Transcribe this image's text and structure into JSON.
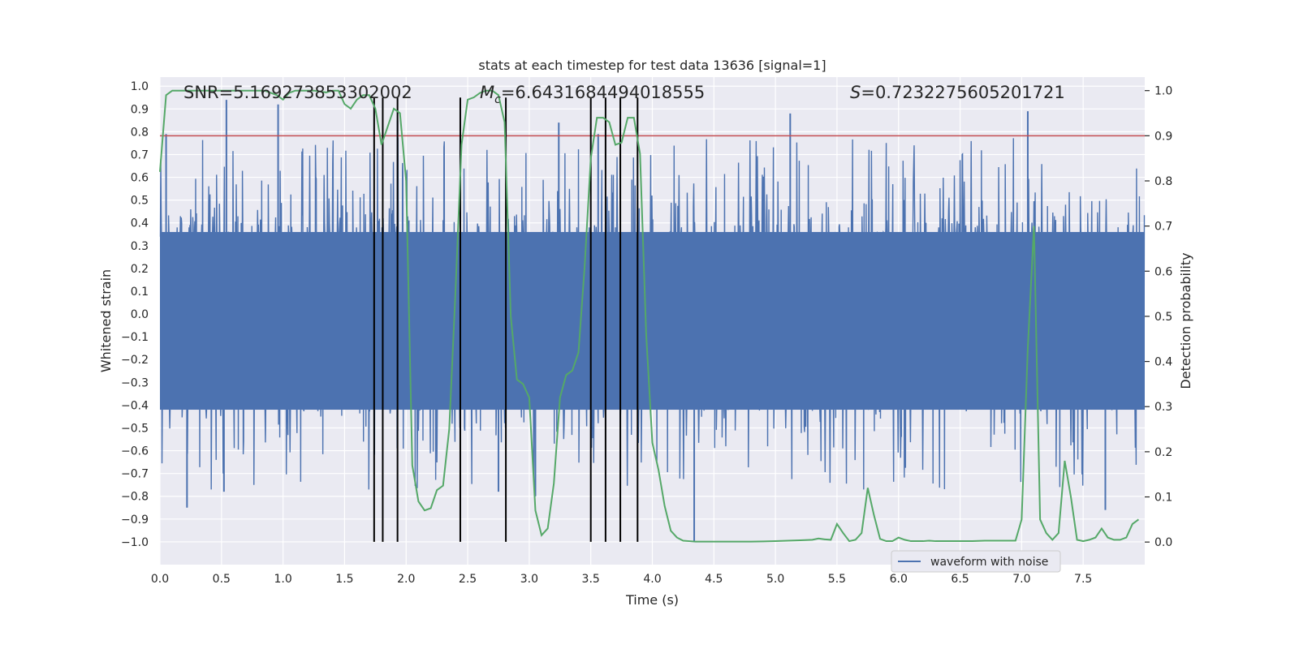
{
  "chart_data": {
    "type": "line",
    "title": "stats at each timestep for test data 13636 [signal=1]",
    "xlabel": "Time (s)",
    "ylabel": "Whitened strain",
    "ylabel_right": "Detection probability",
    "xlim": [
      0.0,
      8.0
    ],
    "ylim": [
      -1.1,
      1.04
    ],
    "ylim_right": [
      -0.05,
      1.03
    ],
    "x_ticks": [
      0.0,
      0.5,
      1.0,
      1.5,
      2.0,
      2.5,
      3.0,
      3.5,
      4.0,
      4.5,
      5.0,
      5.5,
      6.0,
      6.5,
      7.0,
      7.5
    ],
    "x_tick_labels": [
      "0.0",
      "0.5",
      "1.0",
      "1.5",
      "2.0",
      "2.5",
      "3.0",
      "3.5",
      "4.0",
      "4.5",
      "5.0",
      "5.5",
      "6.0",
      "6.5",
      "7.0",
      "7.5"
    ],
    "y_ticks": [
      1.0,
      0.9,
      0.8,
      0.7,
      0.6,
      0.5,
      0.4,
      0.3,
      0.2,
      0.1,
      0.0,
      -0.1,
      -0.2,
      -0.3,
      -0.4,
      -0.5,
      -0.6,
      -0.7,
      -0.8,
      -0.9,
      -1.0
    ],
    "y_tick_labels": [
      "1.0",
      "0.9",
      "0.8",
      "0.7",
      "0.6",
      "0.5",
      "0.4",
      "0.3",
      "0.2",
      "0.1",
      "0.0",
      "-0.1",
      "-0.2",
      "-0.3",
      "-0.4",
      "-0.5",
      "-0.6",
      "-0.7",
      "-0.8",
      "-0.9",
      "-1.0"
    ],
    "y_right_ticks": [
      1.0,
      0.9,
      0.8,
      0.7,
      0.6,
      0.5,
      0.4,
      0.3,
      0.2,
      0.1,
      0.0
    ],
    "y_right_tick_labels": [
      "1.0",
      "0.9",
      "0.8",
      "0.7",
      "0.6",
      "0.5",
      "0.4",
      "0.3",
      "0.2",
      "0.1",
      "0.0"
    ],
    "annotations": {
      "snr": "SNR=5.169273853302002",
      "mc": "M_c=6.6431684494018555",
      "mc_symbol": "M",
      "mc_sub": "c",
      "mc_value": "=6.6431684494018555",
      "s_symbol": "S",
      "s_value": "=0.7232275605201721"
    },
    "threshold": {
      "value": 0.9,
      "axis": "right",
      "color": "#c44e52"
    },
    "event_markers": {
      "x": [
        1.74,
        1.81,
        1.93,
        2.44,
        2.81,
        3.5,
        3.62,
        3.74,
        3.88
      ],
      "ymin": -1.0,
      "ymax": 0.95,
      "color": "#000000"
    },
    "waveform": {
      "name": "waveform with noise",
      "color": "#4c72b0",
      "duration": 8.0,
      "samples": 2400,
      "core_band": [
        -0.42,
        0.36
      ],
      "spikes": [
        {
          "x": 0.54,
          "y": 0.94
        },
        {
          "x": 0.96,
          "y": 0.92
        },
        {
          "x": 0.22,
          "y": -0.85
        },
        {
          "x": 0.05,
          "y": 0.79
        },
        {
          "x": 1.93,
          "y": 0.85
        },
        {
          "x": 2.44,
          "y": 0.79
        },
        {
          "x": 3.24,
          "y": 0.84
        },
        {
          "x": 3.56,
          "y": 0.79
        },
        {
          "x": 4.34,
          "y": -1.0
        },
        {
          "x": 5.12,
          "y": 0.88
        },
        {
          "x": 7.05,
          "y": 0.89
        },
        {
          "x": 7.68,
          "y": -0.86
        },
        {
          "x": 3.05,
          "y": -0.8
        },
        {
          "x": 2.75,
          "y": -0.78
        },
        {
          "x": 0.52,
          "y": -0.78
        }
      ]
    },
    "probability": {
      "color": "#55a868",
      "x": [
        0.0,
        0.05,
        0.1,
        0.15,
        0.2,
        0.25,
        0.3,
        0.35,
        0.4,
        0.45,
        0.5,
        0.55,
        0.6,
        0.65,
        0.7,
        0.75,
        0.8,
        0.85,
        0.9,
        0.95,
        1.0,
        1.05,
        1.1,
        1.15,
        1.2,
        1.25,
        1.3,
        1.35,
        1.4,
        1.45,
        1.5,
        1.55,
        1.6,
        1.65,
        1.7,
        1.75,
        1.8,
        1.85,
        1.9,
        1.95,
        2.0,
        2.05,
        2.1,
        2.15,
        2.2,
        2.25,
        2.3,
        2.35,
        2.4,
        2.45,
        2.5,
        2.55,
        2.6,
        2.65,
        2.7,
        2.75,
        2.8,
        2.85,
        2.9,
        2.95,
        3.0,
        3.05,
        3.1,
        3.15,
        3.2,
        3.25,
        3.3,
        3.35,
        3.4,
        3.45,
        3.5,
        3.55,
        3.6,
        3.65,
        3.7,
        3.75,
        3.8,
        3.85,
        3.9,
        3.95,
        4.0,
        4.05,
        4.1,
        4.15,
        4.2,
        4.25,
        4.3,
        4.35,
        4.4,
        4.5,
        4.6,
        4.7,
        4.8,
        4.9,
        5.0,
        5.1,
        5.2,
        5.3,
        5.35,
        5.4,
        5.45,
        5.5,
        5.55,
        5.6,
        5.65,
        5.7,
        5.75,
        5.8,
        5.85,
        5.9,
        5.95,
        6.0,
        6.05,
        6.1,
        6.15,
        6.2,
        6.25,
        6.3,
        6.35,
        6.4,
        6.45,
        6.5,
        6.6,
        6.7,
        6.8,
        6.9,
        6.95,
        7.0,
        7.05,
        7.1,
        7.15,
        7.2,
        7.25,
        7.3,
        7.35,
        7.4,
        7.45,
        7.5,
        7.55,
        7.6,
        7.65,
        7.7,
        7.75,
        7.8,
        7.85,
        7.9,
        7.95
      ],
      "y": [
        0.82,
        0.99,
        1.0,
        1.0,
        1.0,
        1.0,
        1.0,
        1.0,
        1.0,
        1.0,
        1.0,
        1.0,
        1.0,
        1.0,
        1.0,
        1.0,
        1.0,
        1.0,
        0.995,
        0.99,
        0.98,
        0.995,
        1.0,
        1.0,
        1.0,
        1.0,
        0.998,
        0.996,
        1.0,
        1.0,
        0.97,
        0.96,
        0.98,
        0.99,
        0.99,
        0.96,
        0.88,
        0.92,
        0.96,
        0.95,
        0.8,
        0.17,
        0.09,
        0.07,
        0.075,
        0.115,
        0.125,
        0.25,
        0.55,
        0.88,
        0.98,
        0.985,
        0.995,
        1.0,
        1.0,
        0.99,
        0.93,
        0.5,
        0.36,
        0.35,
        0.32,
        0.07,
        0.015,
        0.03,
        0.13,
        0.32,
        0.37,
        0.38,
        0.42,
        0.61,
        0.85,
        0.94,
        0.94,
        0.93,
        0.88,
        0.885,
        0.94,
        0.94,
        0.86,
        0.46,
        0.22,
        0.16,
        0.08,
        0.025,
        0.01,
        0.003,
        0.002,
        0.001,
        0.001,
        0.001,
        0.001,
        0.001,
        0.001,
        0.0015,
        0.002,
        0.003,
        0.004,
        0.005,
        0.008,
        0.006,
        0.005,
        0.04,
        0.02,
        0.002,
        0.005,
        0.02,
        0.12,
        0.06,
        0.007,
        0.002,
        0.002,
        0.01,
        0.005,
        0.002,
        0.002,
        0.002,
        0.003,
        0.002,
        0.002,
        0.002,
        0.002,
        0.002,
        0.002,
        0.003,
        0.003,
        0.003,
        0.003,
        0.05,
        0.43,
        0.7,
        0.05,
        0.02,
        0.005,
        0.02,
        0.18,
        0.1,
        0.005,
        0.002,
        0.005,
        0.01,
        0.03,
        0.01,
        0.005,
        0.005,
        0.01,
        0.04,
        0.05
      ]
    },
    "legend": {
      "label": "waveform with noise",
      "location": "lower-right"
    },
    "grid": true
  }
}
